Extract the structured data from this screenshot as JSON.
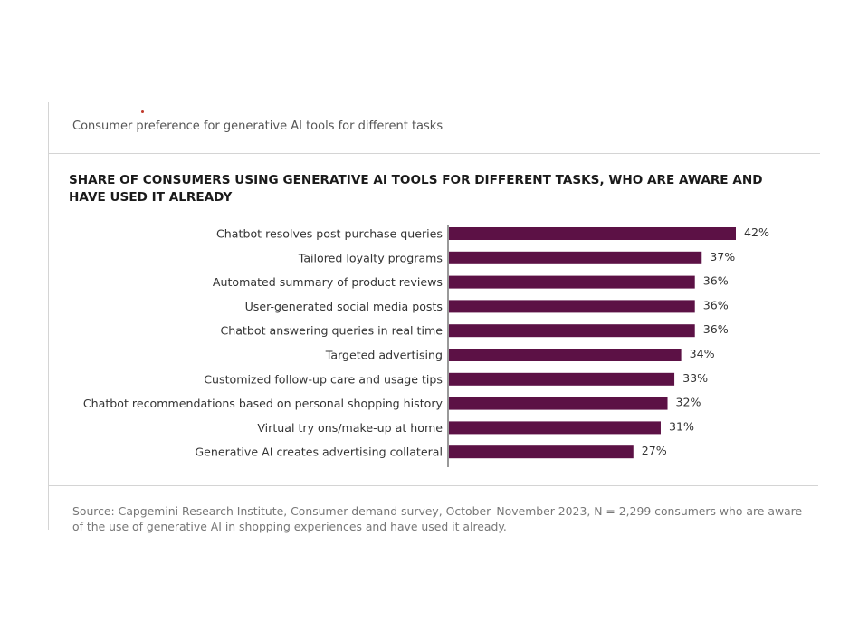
{
  "header": {
    "subtitle": "Consumer preference for generative AI tools for different tasks"
  },
  "chart_data": {
    "type": "bar",
    "orientation": "horizontal",
    "title": "SHARE OF CONSUMERS USING GENERATIVE AI TOOLS FOR DIFFERENT TASKS, WHO ARE AWARE AND HAVE USED IT ALREADY",
    "categories": [
      "Chatbot resolves post purchase queries",
      "Tailored loyalty programs",
      "Automated summary of product reviews",
      "User-generated social media posts",
      "Chatbot answering queries in real time",
      "Targeted advertising",
      "Customized follow-up care and usage tips",
      "Chatbot recommendations based on personal shopping history",
      "Virtual try ons/make-up at home",
      "Generative AI creates advertising collateral"
    ],
    "values": [
      42,
      37,
      36,
      36,
      36,
      34,
      33,
      32,
      31,
      27
    ],
    "value_labels": [
      "42%",
      "37%",
      "36%",
      "36%",
      "36%",
      "34%",
      "33%",
      "32%",
      "31%",
      "27%"
    ],
    "unit": "%",
    "bar_color": "#5c1145",
    "grid": false,
    "legend": "none"
  },
  "footer": {
    "source": "Source: Capgemini Research Institute, Consumer demand survey, October–November 2023, N = 2,299 consumers who are aware of the use of generative AI in shopping experiences and have used it already."
  }
}
